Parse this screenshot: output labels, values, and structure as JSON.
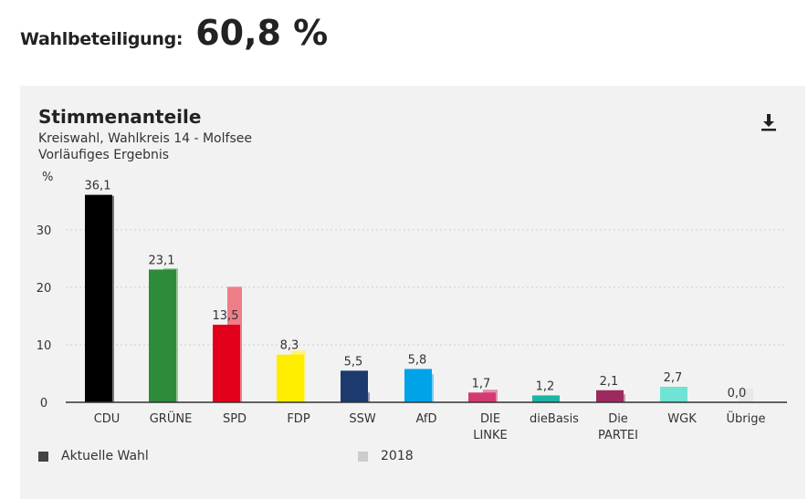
{
  "turnout": {
    "label": "Wahlbeteiligung:",
    "value": "60,8 %"
  },
  "chart_data": {
    "type": "bar",
    "title": "Stimmenanteile",
    "subtitle_line1": "Kreiswahl, Wahlkreis 14 - Molfsee",
    "subtitle_line2": "Vorläufiges Ergebnis",
    "ylabel": "%",
    "ylim": [
      0,
      36
    ],
    "yticks": [
      0,
      10,
      20,
      30
    ],
    "grid": true,
    "categories": [
      "CDU",
      "GRÜNE",
      "SPD",
      "FDP",
      "SSW",
      "AfD",
      "DIE LINKE",
      "dieBasis",
      "Die PARTEI",
      "WGK",
      "Übrige"
    ],
    "series": [
      {
        "name": "Aktuelle Wahl",
        "values": [
          36.1,
          23.1,
          13.5,
          8.3,
          5.5,
          5.8,
          1.7,
          1.2,
          2.1,
          2.7,
          0.0
        ],
        "labels": [
          "36,1",
          "23,1",
          "13,5",
          "8,3",
          "5,5",
          "5,8",
          "1,7",
          "1,2",
          "2,1",
          "2,7",
          "0,0"
        ],
        "colors": [
          "#000000",
          "#2e8b3a",
          "#e3001b",
          "#ffed00",
          "#1c3a6e",
          "#00a2e8",
          "#d43a72",
          "#1ab5a4",
          "#9c2a5e",
          "#6fe3d6",
          "#e8e8e8"
        ]
      },
      {
        "name": "2018",
        "values": [
          35.9,
          23.3,
          20.1,
          9.0,
          1.7,
          4.9,
          2.2,
          0.0,
          1.4,
          0.0,
          2.4
        ],
        "colors": [
          "#7a7a7a",
          "#92c794",
          "#ee7d88",
          "#fff37a",
          "#8d9dba",
          "#7dcbf2",
          "#e68fb0",
          "#f2f2f2",
          "#c595ad",
          "#f2f2f2",
          "#e8e8e8"
        ]
      }
    ],
    "legend": {
      "position": "bottom",
      "current": "Aktuelle Wahl",
      "previous": "2018",
      "current_color": "#444444",
      "previous_color": "#cccccc"
    }
  }
}
